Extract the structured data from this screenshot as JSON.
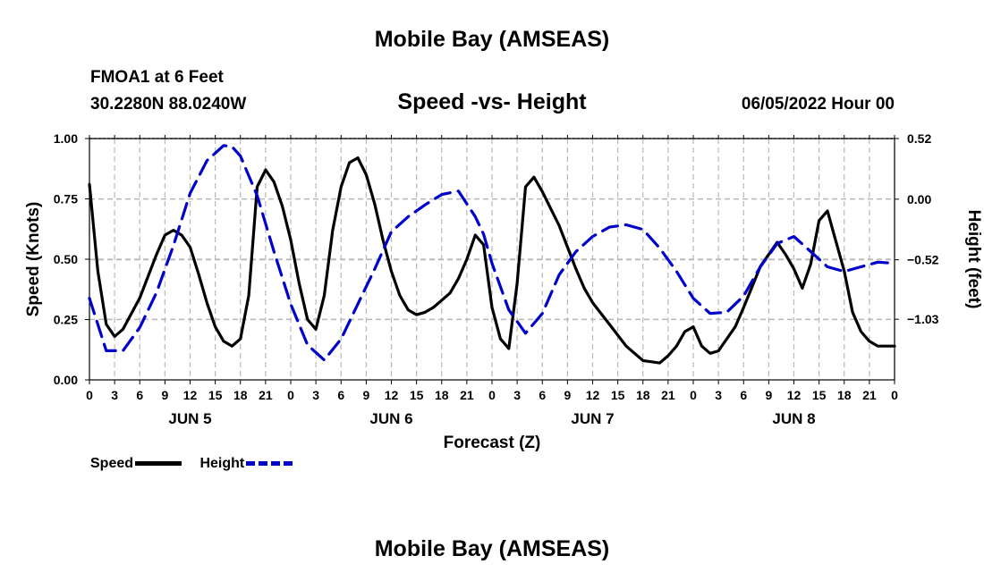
{
  "header": {
    "main_title": "Mobile Bay (AMSEAS)",
    "station": "FMOA1 at 6 Feet",
    "coords": "30.2280N  88.0240W",
    "subtitle": "Speed -vs- Height",
    "datestamp": "06/05/2022 Hour 00"
  },
  "footer": {
    "title": "Mobile Bay (AMSEAS)"
  },
  "legend": {
    "speed": "Speed",
    "height": "Height"
  },
  "chart_data": {
    "type": "line",
    "title": "Speed -vs- Height",
    "xlabel": "Forecast (Z)",
    "ylabel_left": "Speed (Knots)",
    "ylabel_right": "Height (feet)",
    "xlim": [
      0,
      96
    ],
    "ylim_left": [
      0,
      1.0
    ],
    "ylim_right": [
      -1.55,
      0.52
    ],
    "x_tick_labels": [
      "0",
      "3",
      "6",
      "9",
      "12",
      "15",
      "18",
      "21",
      "0",
      "3",
      "6",
      "9",
      "12",
      "15",
      "18",
      "21",
      "0",
      "3",
      "6",
      "9",
      "12",
      "15",
      "18",
      "21",
      "0",
      "3",
      "6",
      "9",
      "12",
      "15",
      "18",
      "21",
      "0"
    ],
    "day_labels": [
      {
        "label": "JUN 5",
        "x": 12
      },
      {
        "label": "JUN 6",
        "x": 36
      },
      {
        "label": "JUN 7",
        "x": 60
      },
      {
        "label": "JUN 8",
        "x": 84
      }
    ],
    "left_ticks": [
      {
        "value": 0.0,
        "label": "0.00"
      },
      {
        "value": 0.25,
        "label": "0.25"
      },
      {
        "value": 0.5,
        "label": "0.50"
      },
      {
        "value": 0.75,
        "label": "0.75"
      },
      {
        "value": 1.0,
        "label": "1.00"
      }
    ],
    "right_ticks": [
      {
        "value": 0.52,
        "label": "0.52"
      },
      {
        "value": 0.0,
        "label": "0.00"
      },
      {
        "value": -0.52,
        "label": "−0.52"
      },
      {
        "value": -1.03,
        "label": "−1.03"
      }
    ],
    "series": [
      {
        "name": "Speed",
        "axis": "left",
        "color": "#000000",
        "style": "solid",
        "x": [
          0,
          1,
          2,
          3,
          4,
          6,
          8,
          9,
          10,
          11,
          12,
          13,
          14,
          15,
          16,
          17,
          18,
          19,
          20,
          21,
          22,
          23,
          24,
          25,
          26,
          27,
          28,
          29,
          30,
          31,
          32,
          33,
          34,
          35,
          36,
          37,
          38,
          39,
          40,
          41,
          42,
          43,
          44,
          45,
          46,
          47,
          48,
          49,
          50,
          51,
          52,
          53,
          54,
          55,
          56,
          57,
          58,
          59,
          60,
          62,
          64,
          66,
          68,
          69,
          70,
          71,
          72,
          73,
          74,
          75,
          76,
          77,
          78,
          80,
          82,
          83,
          84,
          85,
          86,
          87,
          88,
          90,
          91,
          92,
          93,
          94,
          96
        ],
        "values": [
          0.81,
          0.45,
          0.23,
          0.18,
          0.21,
          0.34,
          0.52,
          0.6,
          0.62,
          0.6,
          0.55,
          0.44,
          0.32,
          0.22,
          0.16,
          0.14,
          0.17,
          0.35,
          0.8,
          0.87,
          0.82,
          0.72,
          0.58,
          0.4,
          0.25,
          0.21,
          0.35,
          0.62,
          0.8,
          0.9,
          0.92,
          0.85,
          0.73,
          0.58,
          0.45,
          0.35,
          0.29,
          0.27,
          0.28,
          0.3,
          0.33,
          0.36,
          0.42,
          0.5,
          0.6,
          0.56,
          0.3,
          0.17,
          0.13,
          0.4,
          0.8,
          0.84,
          0.78,
          0.71,
          0.64,
          0.55,
          0.46,
          0.38,
          0.32,
          0.23,
          0.14,
          0.08,
          0.07,
          0.1,
          0.14,
          0.2,
          0.22,
          0.14,
          0.11,
          0.12,
          0.17,
          0.22,
          0.3,
          0.47,
          0.57,
          0.52,
          0.46,
          0.38,
          0.48,
          0.66,
          0.7,
          0.45,
          0.28,
          0.2,
          0.16,
          0.14,
          0.14
        ]
      },
      {
        "name": "Height",
        "axis": "right",
        "color": "#0000cc",
        "style": "dashed",
        "x": [
          0,
          2,
          4,
          6,
          8,
          10,
          12,
          14,
          16,
          17,
          18,
          20,
          22,
          24,
          26,
          28,
          30,
          32,
          34,
          36,
          38,
          40,
          42,
          44,
          46,
          47,
          48,
          50,
          52,
          54,
          56,
          58,
          60,
          62,
          64,
          66,
          68,
          70,
          72,
          74,
          76,
          78,
          80,
          82,
          84,
          86,
          88,
          90,
          92,
          94,
          96
        ],
        "values": [
          -0.85,
          -1.3,
          -1.3,
          -1.1,
          -0.8,
          -0.4,
          0.05,
          0.33,
          0.46,
          0.45,
          0.37,
          0.03,
          -0.45,
          -0.9,
          -1.25,
          -1.38,
          -1.2,
          -0.9,
          -0.6,
          -0.28,
          -0.15,
          -0.05,
          0.04,
          0.07,
          -0.15,
          -0.3,
          -0.55,
          -0.95,
          -1.15,
          -0.98,
          -0.65,
          -0.45,
          -0.32,
          -0.24,
          -0.22,
          -0.26,
          -0.42,
          -0.62,
          -0.85,
          -0.98,
          -0.97,
          -0.83,
          -0.58,
          -0.38,
          -0.32,
          -0.45,
          -0.58,
          -0.62,
          -0.58,
          -0.54,
          -0.55
        ]
      }
    ]
  }
}
